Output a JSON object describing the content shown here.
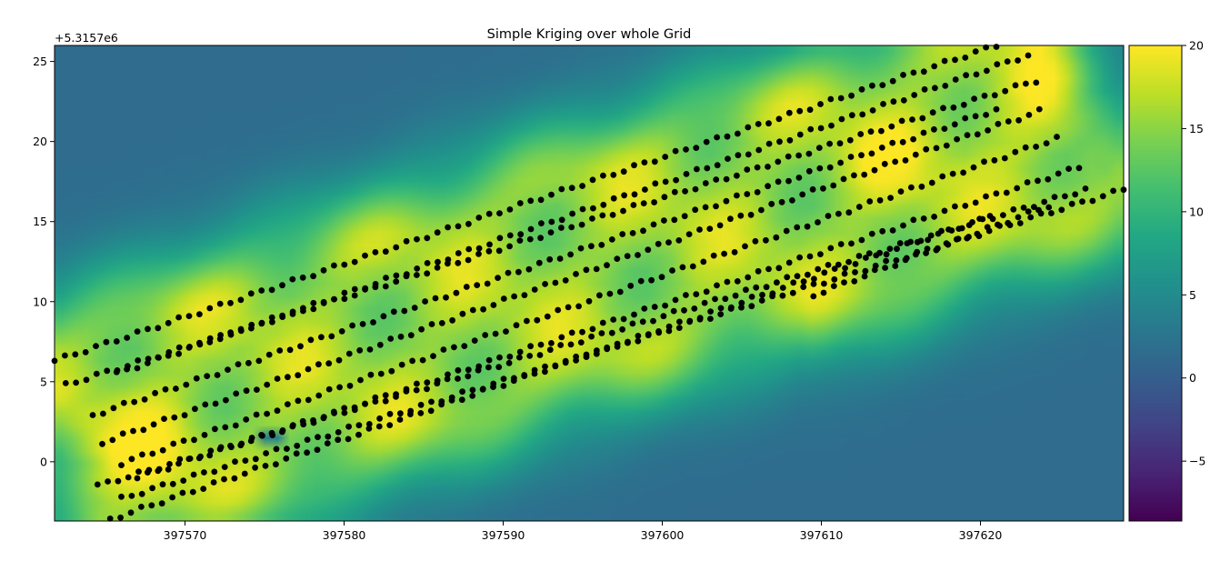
{
  "chart_data": {
    "type": "heatmap",
    "title": "Simple Kriging over whole Grid",
    "xlabel": "",
    "ylabel": "",
    "y_offset_label": "+5.3157e6",
    "xlim": [
      397561.8,
      397629.0
    ],
    "ylim": [
      -3.7,
      26.0
    ],
    "x_ticks": [
      397570,
      397580,
      397590,
      397600,
      397610,
      397620
    ],
    "x_tick_labels": [
      "397570",
      "397580",
      "397590",
      "397600",
      "397610",
      "397620"
    ],
    "y_ticks": [
      0,
      5,
      10,
      15,
      20,
      25
    ],
    "y_tick_labels": [
      "0",
      "5",
      "10",
      "15",
      "20",
      "25"
    ],
    "colormap": "viridis",
    "clim": [
      -8.6,
      20
    ],
    "colorbar_ticks": [
      20,
      15,
      10,
      5,
      0,
      -5
    ],
    "colorbar_tick_labels": [
      "20",
      "15",
      "10",
      "5",
      "0",
      "−5"
    ],
    "grid": false,
    "background_value": 1.5,
    "low_anomaly": {
      "x": [
        397574.9,
        397576.3
      ],
      "y": [
        1.0,
        2.3
      ],
      "value": -7.5
    },
    "sample_lines": [
      {
        "x0": 397561.8,
        "y0": 6.3,
        "x1": 397621.0,
        "y1": 26.0
      },
      {
        "x0": 397565.7,
        "y0": 5.5,
        "x1": 397623.0,
        "y1": 25.4
      },
      {
        "x0": 397562.5,
        "y0": 4.8,
        "x1": 397623.5,
        "y1": 23.8
      },
      {
        "x0": 397564.2,
        "y0": 2.9,
        "x1": 397621.0,
        "y1": 22.0
      },
      {
        "x0": 397564.8,
        "y0": 1.2,
        "x1": 397623.7,
        "y1": 21.9
      },
      {
        "x0": 397566.0,
        "y0": -0.1,
        "x1": 397624.8,
        "y1": 20.2
      },
      {
        "x0": 397567.0,
        "y0": -1.0,
        "x1": 397626.2,
        "y1": 18.4
      },
      {
        "x0": 397564.5,
        "y0": -1.5,
        "x1": 397626.6,
        "y1": 17.0
      },
      {
        "x0": 397566.0,
        "y0": -2.3,
        "x1": 397629.0,
        "y1": 17.0
      },
      {
        "x0": 397565.3,
        "y0": -3.6,
        "x1": 397620.6,
        "y1": 15.3
      },
      {
        "x0": 397609.5,
        "y0": 10.4,
        "x1": 397624.3,
        "y1": 16.0
      }
    ],
    "point_spacing_x": 0.65,
    "marker_color": "#000000"
  }
}
